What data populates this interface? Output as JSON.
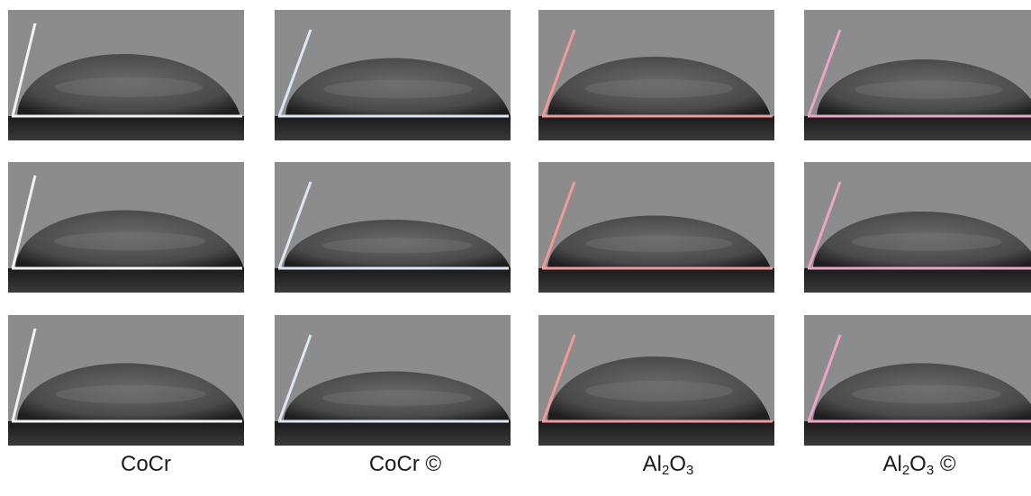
{
  "figure": {
    "columns": [
      {
        "label_main": "CoCr",
        "label_tail": "",
        "formula": false,
        "line_color": "#f2f2f2"
      },
      {
        "label_main": "CoCr ©",
        "label_tail": "",
        "formula": false,
        "line_color": "#dde7f4"
      },
      {
        "label_main": "Al",
        "label_tail": "O",
        "formula": true,
        "line_color": "#f19a9a"
      },
      {
        "label_main": "Al",
        "label_tail": "O",
        "formula": true,
        "suffix": " ©",
        "line_color": "#eda5c6"
      }
    ],
    "subscripts": {
      "al": "2",
      "o": "3"
    },
    "droplet_images": [
      {
        "name": "cocr-row-1"
      },
      {
        "name": "cocr-c-row-1"
      },
      {
        "name": "al2o3-row-1"
      },
      {
        "name": "al2o3-c-row-1"
      },
      {
        "name": "cocr-row-2"
      },
      {
        "name": "cocr-c-row-2"
      },
      {
        "name": "al2o3-row-2"
      },
      {
        "name": "al2o3-c-row-2"
      },
      {
        "name": "cocr-row-3"
      },
      {
        "name": "cocr-c-row-3"
      },
      {
        "name": "al2o3-row-3"
      },
      {
        "name": "al2o3-c-row-3"
      }
    ]
  }
}
